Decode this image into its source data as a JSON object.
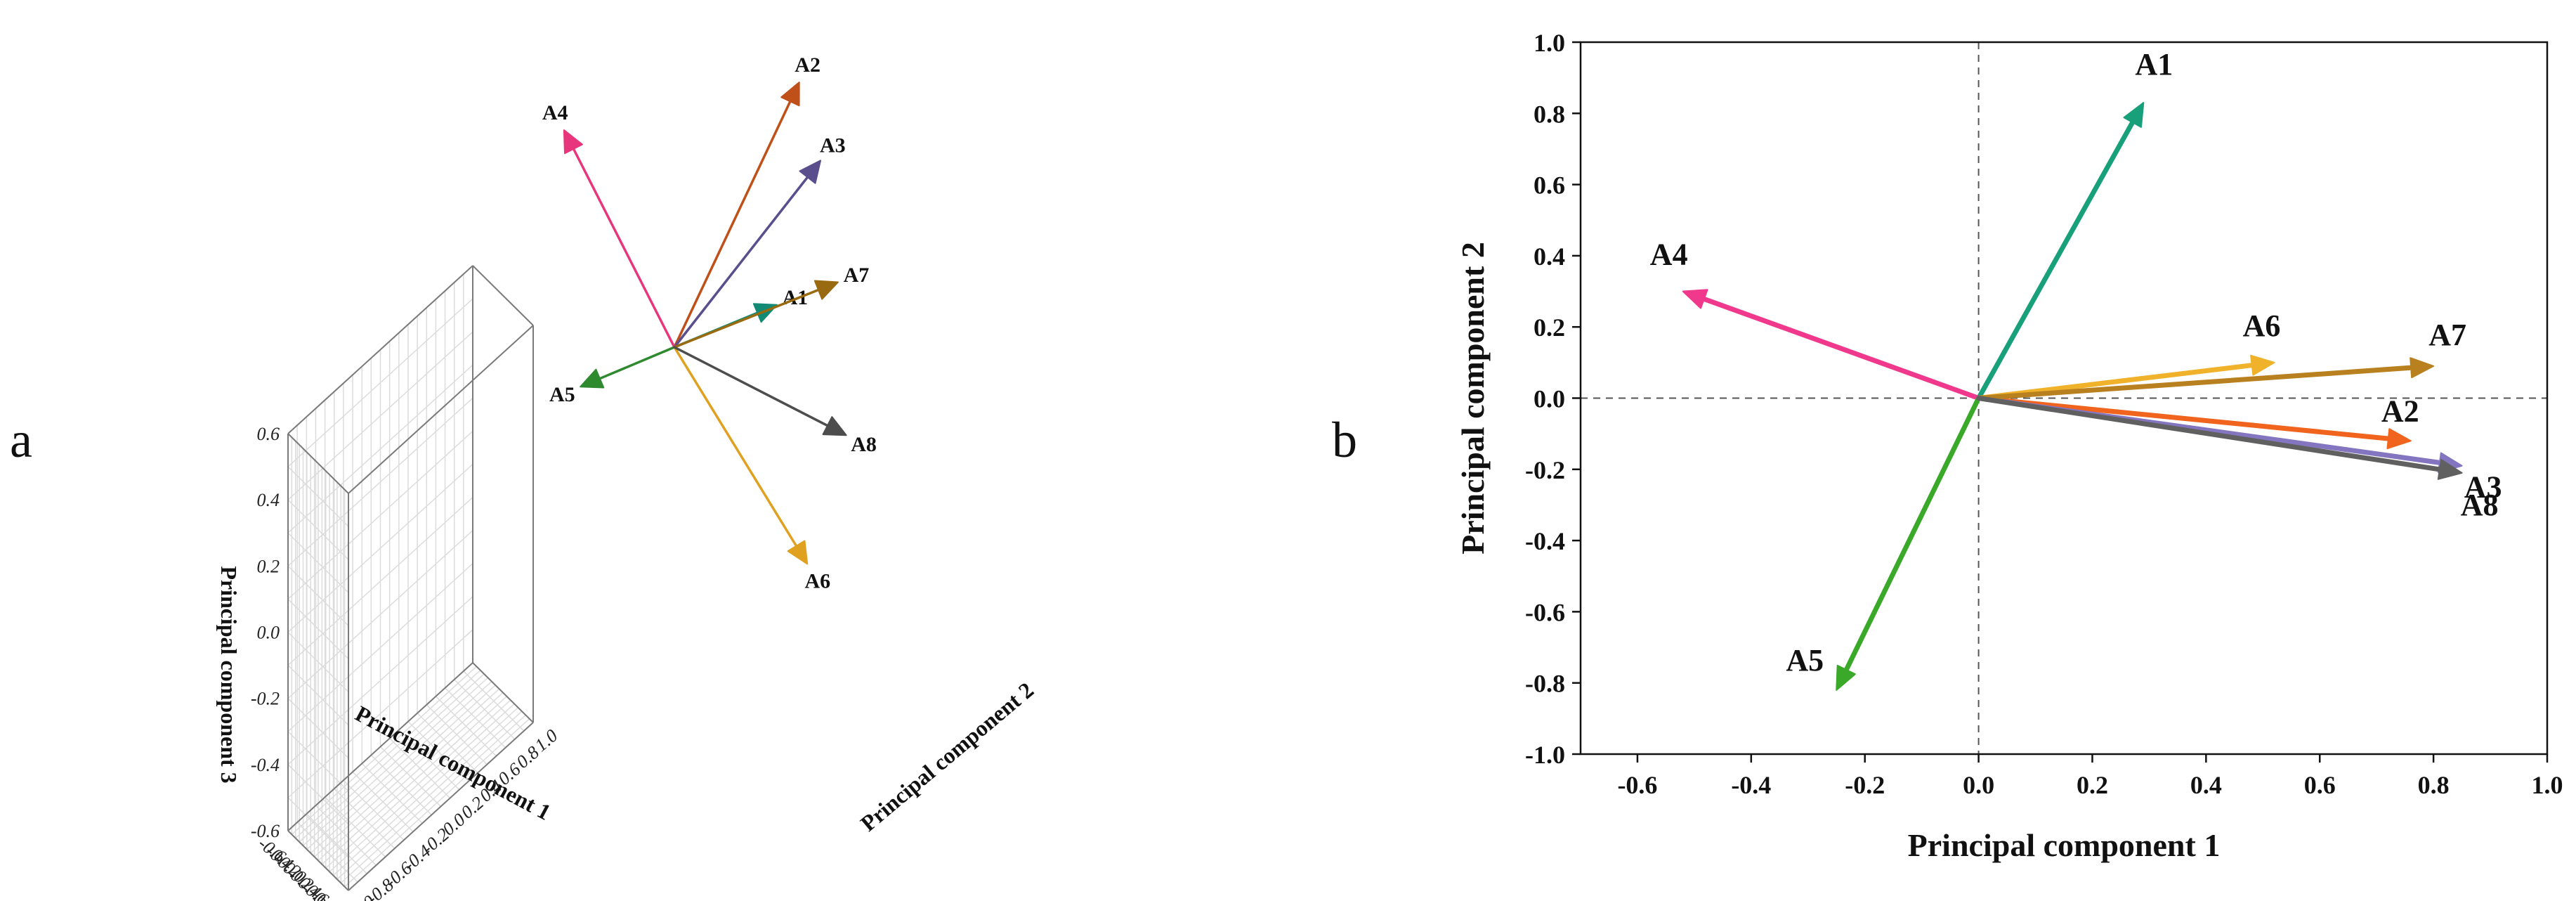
{
  "panels": {
    "a": "a",
    "b": "b"
  },
  "chart_data": [
    {
      "id": "a",
      "type": "line",
      "subtype": "3d-loading-plot",
      "title": "",
      "xlabel": "Principal component 1",
      "ylabel": "Principal component 2",
      "zlabel": "Principal component 3",
      "xlim": [
        -0.6,
        1.0
      ],
      "ylim": [
        -1.0,
        1.0
      ],
      "zlim": [
        -0.6,
        0.6
      ],
      "xticks": [
        "-0.6",
        "-0.4",
        "-0.2",
        "0.0",
        "0.2",
        "0.4",
        "0.6",
        "0.8",
        "1.0"
      ],
      "yticks": [
        "-1.0",
        "-0.8",
        "-0.6",
        "-0.4",
        "-0.2",
        "0.0",
        "0.2",
        "0.4",
        "0.6",
        "0.8",
        "1.0"
      ],
      "zticks": [
        "-0.6",
        "-0.4",
        "-0.2",
        "0.0",
        "0.2",
        "0.4",
        "0.6"
      ],
      "grid": true,
      "vectors": [
        {
          "name": "A1",
          "pc1": 0.29,
          "pc2": 0.83,
          "pc3": 0.05,
          "color": "#138a74"
        },
        {
          "name": "A2",
          "pc1": 0.76,
          "pc2": -0.12,
          "pc3": 0.5,
          "color": "#c0501a"
        },
        {
          "name": "A3",
          "pc1": 0.85,
          "pc2": -0.2,
          "pc3": 0.3,
          "color": "#5a4e8c"
        },
        {
          "name": "A4",
          "pc1": -0.52,
          "pc2": 0.3,
          "pc3": 0.6,
          "color": "#e8367c"
        },
        {
          "name": "A5",
          "pc1": -0.25,
          "pc2": -0.82,
          "pc3": -0.05,
          "color": "#2f8a2f"
        },
        {
          "name": "A6",
          "pc1": 0.52,
          "pc2": 0.1,
          "pc3": -0.6,
          "color": "#e0a020"
        },
        {
          "name": "A7",
          "pc1": 0.8,
          "pc2": 0.09,
          "pc3": 0.02,
          "color": "#9a6a10"
        },
        {
          "name": "A8",
          "pc1": 0.85,
          "pc2": -0.2,
          "pc3": -0.35,
          "color": "#4d4d4d"
        }
      ]
    },
    {
      "id": "b",
      "type": "line",
      "subtype": "2d-loading-plot",
      "title": "",
      "xlabel": "Principal component 1",
      "ylabel": "Principal component 2",
      "xlim": [
        -0.7,
        1.0
      ],
      "ylim": [
        -1.0,
        1.0
      ],
      "xticks": [
        "-0.6",
        "-0.4",
        "-0.2",
        "0.0",
        "0.2",
        "0.4",
        "0.6",
        "0.8",
        "1.0"
      ],
      "yticks": [
        "-1.0",
        "-0.8",
        "-0.6",
        "-0.4",
        "-0.2",
        "0.0",
        "0.2",
        "0.4",
        "0.6",
        "0.8",
        "1.0"
      ],
      "grid": false,
      "reference_lines": [
        "x=0 dashed",
        "y=0 dashed"
      ],
      "vectors": [
        {
          "name": "A1",
          "x": 0.29,
          "y": 0.83,
          "color": "#17a07a"
        },
        {
          "name": "A2",
          "x": 0.76,
          "y": -0.12,
          "color": "#f0641e"
        },
        {
          "name": "A3",
          "x": 0.85,
          "y": -0.19,
          "color": "#8475c0"
        },
        {
          "name": "A4",
          "x": -0.52,
          "y": 0.3,
          "color": "#f0388c"
        },
        {
          "name": "A5",
          "x": -0.25,
          "y": -0.82,
          "color": "#3aa828"
        },
        {
          "name": "A6",
          "x": 0.52,
          "y": 0.1,
          "color": "#f0b22a"
        },
        {
          "name": "A7",
          "x": 0.8,
          "y": 0.09,
          "color": "#b8801e"
        },
        {
          "name": "A8",
          "x": 0.85,
          "y": -0.21,
          "color": "#606060"
        }
      ]
    }
  ]
}
